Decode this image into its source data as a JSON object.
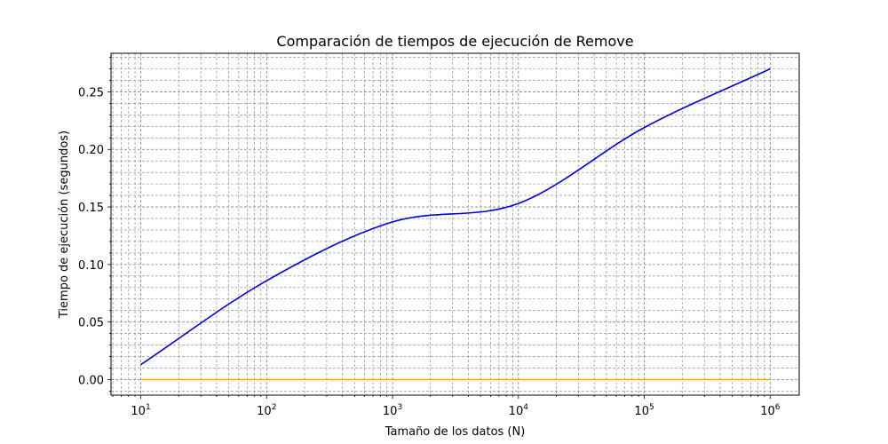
{
  "chart_data": {
    "type": "line",
    "title": "Comparación de tiempos de ejecución de Remove",
    "xlabel": "Tamaño de los datos (N)",
    "ylabel": "Tiempo de ejecución (segundos)",
    "xscale": "log",
    "xlim": [
      5.8,
      1700000
    ],
    "ylim": [
      -0.0135,
      0.2835
    ],
    "grid": true,
    "x_ticks": [
      {
        "base": "10",
        "exp": "1"
      },
      {
        "base": "10",
        "exp": "2"
      },
      {
        "base": "10",
        "exp": "3"
      },
      {
        "base": "10",
        "exp": "4"
      },
      {
        "base": "10",
        "exp": "5"
      },
      {
        "base": "10",
        "exp": "6"
      }
    ],
    "y_ticks": [
      "0.00",
      "0.05",
      "0.10",
      "0.15",
      "0.20",
      "0.25"
    ],
    "series": [
      {
        "color": "#0000dd",
        "x": [
          10,
          100,
          1000,
          10000,
          100000,
          1000000
        ],
        "y": [
          0.013,
          0.086,
          0.137,
          0.153,
          0.219,
          0.27
        ]
      },
      {
        "color": "#ffa500",
        "x": [
          10,
          100,
          1000,
          10000,
          100000,
          1000000
        ],
        "y": [
          0,
          0,
          0,
          0,
          0,
          0
        ]
      }
    ]
  }
}
